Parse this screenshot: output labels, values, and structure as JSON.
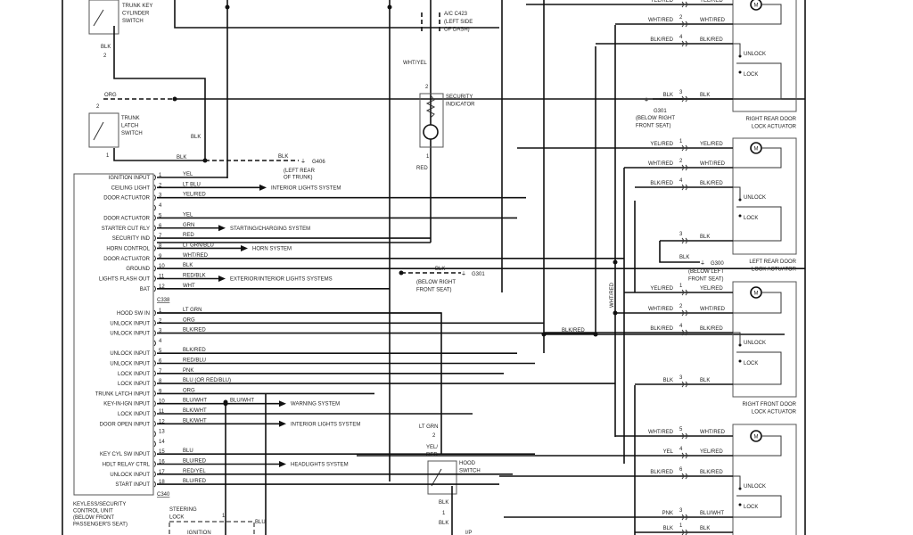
{
  "control_unit": {
    "caption": [
      "KEYLESS/SECURITY",
      "CONTROL UNIT",
      "(BELOW FRONT",
      "PASSENGER'S SEAT)"
    ],
    "connector_a": "C338",
    "connector_b": "C340",
    "pins_a": [
      {
        "pin": "1",
        "label": "IGNITION INPUT",
        "wire": "YEL",
        "dest": ""
      },
      {
        "pin": "2",
        "label": "CEILING LIGHT",
        "wire": "LT BLU",
        "dest": "INTERIOR LIGHTS SYSTEM"
      },
      {
        "pin": "3",
        "label": "DOOR ACTUATOR",
        "wire": "YEL/RED",
        "dest": ""
      },
      {
        "pin": "4",
        "label": "",
        "wire": "",
        "dest": ""
      },
      {
        "pin": "5",
        "label": "DOOR ACTUATOR",
        "wire": "YEL",
        "dest": ""
      },
      {
        "pin": "6",
        "label": "STARTER CUT RLY",
        "wire": "GRN",
        "dest": "STARTING/CHARGING SYSTEM"
      },
      {
        "pin": "7",
        "label": "SECURITY IND",
        "wire": "RED",
        "dest": ""
      },
      {
        "pin": "8",
        "label": "HORN CONTROL",
        "wire": "LT GRN/BLU",
        "dest": "HORN SYSTEM"
      },
      {
        "pin": "9",
        "label": "DOOR ACTUATOR",
        "wire": "WHT/RED",
        "dest": ""
      },
      {
        "pin": "10",
        "label": "GROUND",
        "wire": "BLK",
        "dest": ""
      },
      {
        "pin": "11",
        "label": "LIGHTS FLASH OUT",
        "wire": "RED/BLK",
        "dest": "EXTERIOR/INTERIOR LIGHTS SYSTEMS"
      },
      {
        "pin": "12",
        "label": "BAT",
        "wire": "WHT",
        "dest": ""
      }
    ],
    "pins_b": [
      {
        "pin": "1",
        "label": "HOOD SW IN",
        "wire": "LT GRN",
        "dest": ""
      },
      {
        "pin": "2",
        "label": "UNLOCK INPUT",
        "wire": "ORG",
        "dest": ""
      },
      {
        "pin": "3",
        "label": "UNLOCK INPUT",
        "wire": "BLK/RED",
        "dest": ""
      },
      {
        "pin": "4",
        "label": "",
        "wire": "",
        "dest": ""
      },
      {
        "pin": "5",
        "label": "UNLOCK INPUT",
        "wire": "BLK/RED",
        "dest": ""
      },
      {
        "pin": "6",
        "label": "UNLOCK INPUT",
        "wire": "RED/BLU",
        "dest": ""
      },
      {
        "pin": "7",
        "label": "LOCK INPUT",
        "wire": "PNK",
        "dest": ""
      },
      {
        "pin": "8",
        "label": "LOCK INPUT",
        "wire": "BLU (OR RED/BLU)",
        "dest": ""
      },
      {
        "pin": "9",
        "label": "TRUNK LATCH INPUT",
        "wire": "ORG",
        "dest": ""
      },
      {
        "pin": "10",
        "label": "KEY-IN-IGN INPUT",
        "wire": "BLU/WHT",
        "dest": "WARNING SYSTEM",
        "splice": "BLU/WHT"
      },
      {
        "pin": "11",
        "label": "LOCK INPUT",
        "wire": "BLK/WHT",
        "dest": ""
      },
      {
        "pin": "12",
        "label": "DOOR OPEN INPUT",
        "wire": "BLK/WHT",
        "dest": "INTERIOR LIGHTS SYSTEM"
      },
      {
        "pin": "13",
        "label": "",
        "wire": "",
        "dest": ""
      },
      {
        "pin": "14",
        "label": "",
        "wire": "",
        "dest": ""
      },
      {
        "pin": "15",
        "label": "KEY CYL SW INPUT",
        "wire": "BLU",
        "dest": ""
      },
      {
        "pin": "16",
        "label": "HDLT RELAY CTRL",
        "wire": "BLU/RED",
        "dest": "HEADLIGHTS SYSTEM"
      },
      {
        "pin": "17",
        "label": "UNLOCK INPUT",
        "wire": "RED/YEL",
        "dest": ""
      },
      {
        "pin": "18",
        "label": "START INPUT",
        "wire": "BLU/RED",
        "dest": ""
      }
    ]
  },
  "trunk_key_switch": {
    "name": [
      "TRUNK KEY",
      "CYLINDER",
      "SWITCH"
    ],
    "wire": "BLK",
    "pin": "2"
  },
  "trunk_latch_switch": {
    "name": [
      "TRUNK",
      "LATCH",
      "SWITCH"
    ],
    "wire_in": "ORG",
    "pin_in": "2",
    "pin_out": "1",
    "wire_out": "BLK",
    "wire_vert": "BLK"
  },
  "ground_g406": {
    "wire": "BLK",
    "id": "G406",
    "location": [
      "(LEFT REAR",
      "OF TRUNK)"
    ]
  },
  "connector_c423": {
    "id": "A/C C423",
    "location": [
      "(LEFT SIDE",
      "OF DASH)"
    ]
  },
  "security_indicator": {
    "name": [
      "SECURITY",
      "INDICATOR"
    ],
    "wire_in": "WHT/YEL",
    "pin_in": "2",
    "pin_out": "1",
    "wire_out": "RED"
  },
  "ground_g301_center": {
    "wire": "BLK",
    "id": "G301",
    "location": [
      "(BELOW RIGHT",
      "FRONT SEAT)"
    ]
  },
  "splice_blk_red": "BLK/RED",
  "vertical_wht_red": "WHT/RED",
  "hood_switch": {
    "name": [
      "HOOD",
      "SWITCH"
    ],
    "wire_in": "LT GRN",
    "pin_in": "2",
    "wire_mid": [
      "YEL/",
      "RED"
    ],
    "wire_out": "BLK",
    "pin_out": "1",
    "wire_out2": "BLK",
    "connector": "I/P"
  },
  "steering_lock": {
    "name": [
      "STEERING",
      "LOCK"
    ],
    "pin": "1",
    "wire": "BLU",
    "ignition": "IGNITION"
  },
  "actuators": [
    {
      "name": [
        "RIGHT REAR DOOR",
        "LOCK ACTUATOR"
      ],
      "rows": [
        {
          "l": "YEL/RED",
          "p": "1",
          "r": "YEL/RED"
        },
        {
          "l": "WHT/RED",
          "p": "2",
          "r": "WHT/RED"
        },
        {
          "l": "BLK/RED",
          "p": "4",
          "r": "BLK/RED"
        },
        {
          "l": "BLK",
          "p": "3",
          "r": "BLK"
        }
      ],
      "ground": {
        "id": "G301",
        "location": [
          "(BELOW RIGHT",
          "FRONT SEAT)"
        ]
      }
    },
    {
      "name": [
        "LEFT REAR DOOR",
        "LOCK ACTUATOR"
      ],
      "rows": [
        {
          "l": "YEL/RED",
          "p": "1",
          "r": "YEL/RED"
        },
        {
          "l": "WHT/RED",
          "p": "2",
          "r": "WHT/RED"
        },
        {
          "l": "BLK/RED",
          "p": "4",
          "r": "BLK/RED"
        },
        {
          "l": "",
          "p": "3",
          "r": "BLK"
        }
      ],
      "ground": {
        "wire": "BLK",
        "id": "G300",
        "location": [
          "(BELOW LEFT",
          "FRONT SEAT)"
        ]
      }
    },
    {
      "name": [
        "RIGHT FRONT DOOR",
        "LOCK ACTUATOR"
      ],
      "rows": [
        {
          "l": "YEL/RED",
          "p": "1",
          "r": "YEL/RED"
        },
        {
          "l": "WHT/RED",
          "p": "2",
          "r": "WHT/RED"
        },
        {
          "l": "BLK/RED",
          "p": "4",
          "r": "BLK/RED"
        },
        {
          "l": "BLK",
          "p": "3",
          "r": "BLK"
        }
      ]
    },
    {
      "name": [],
      "rows": [
        {
          "l": "WHT/RED",
          "p": "5",
          "r": "WHT/RED"
        },
        {
          "l": "YEL",
          "p": "4",
          "r": "YEL/RED"
        },
        {
          "l": "BLK/RED",
          "p": "6",
          "r": "BLK/RED"
        },
        {
          "l": "PNK",
          "p": "3",
          "r": "BLU/WHT"
        },
        {
          "l": "BLK",
          "p": "1",
          "r": "BLK"
        }
      ]
    }
  ],
  "actuator_labels": {
    "unlock": "UNLOCK",
    "lock": "LOCK",
    "motor": "M"
  }
}
